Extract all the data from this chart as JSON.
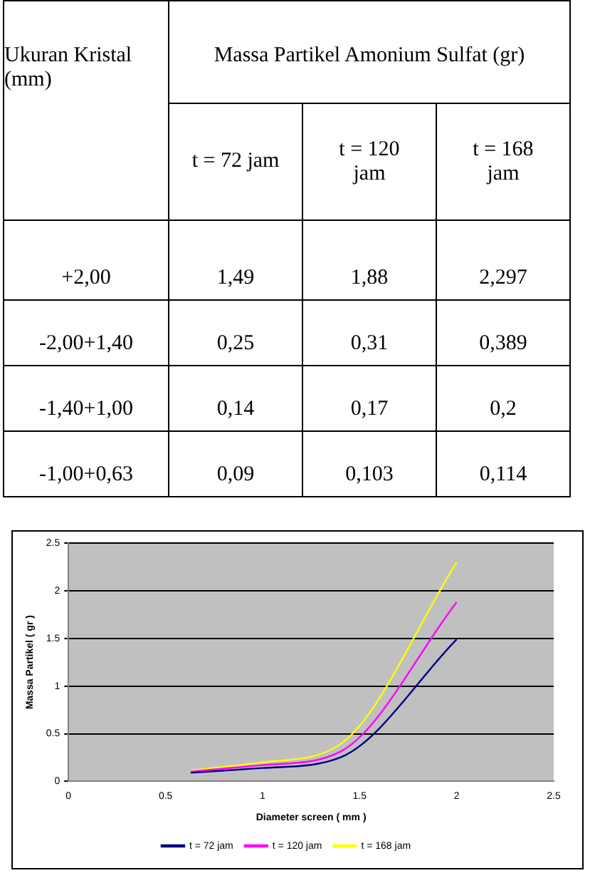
{
  "chart_data": [
    {
      "type": "other",
      "ylabel": "Ukuran Kristal (mm)",
      "xlabel": "Massa Partikel Amonium Sulfat (gr)",
      "categories": [
        "t = 72 jam",
        "t = 120 jam",
        "t = 168 jam"
      ],
      "y_categories": [
        "+2,00",
        "-2,00+1,40",
        "-1,40+1,00",
        "-1,00+0,63"
      ],
      "cell_labels": [
        [
          "1,49",
          "1,88",
          "2,297"
        ],
        [
          "0,25",
          "0,31",
          "0,389"
        ],
        [
          "0,14",
          "0,17",
          "0,2"
        ],
        [
          "0,09",
          "0,103",
          "0,114"
        ]
      ]
    },
    {
      "type": "line",
      "xlabel": "Diameter screen ( mm )",
      "ylabel": "Massa Partikel ( gr )",
      "x": [
        0.63,
        1.0,
        1.4,
        2.0
      ],
      "series": [
        {
          "name": "t = 72 jam",
          "color": "#000080",
          "values": [
            0.09,
            0.14,
            0.25,
            1.49
          ]
        },
        {
          "name": "t = 120 jam",
          "color": "#ff00ff",
          "values": [
            0.103,
            0.17,
            0.31,
            1.88
          ]
        },
        {
          "name": "t = 168 jam",
          "color": "#ffff00",
          "values": [
            0.114,
            0.2,
            0.389,
            2.297
          ]
        }
      ],
      "xlim": [
        0,
        2.5
      ],
      "xticks": [
        0,
        0.5,
        1,
        1.5,
        2,
        2.5
      ],
      "ylim": [
        0,
        2.5
      ],
      "yticks": [
        0,
        0.5,
        1,
        1.5,
        2,
        2.5
      ],
      "grid": "y",
      "legend": "bottom",
      "marker": "none",
      "line_style": "solid"
    }
  ]
}
